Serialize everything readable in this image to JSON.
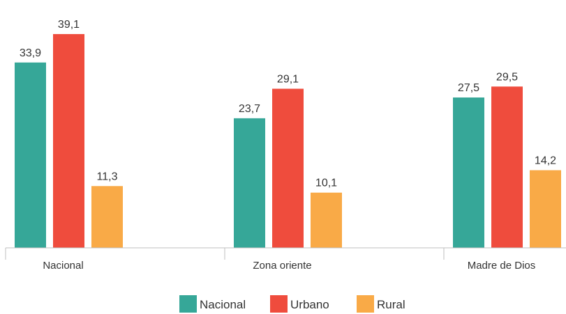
{
  "chart_data": {
    "type": "bar",
    "categories": [
      "Nacional",
      "Zona oriente",
      "Madre de Dios"
    ],
    "series": [
      {
        "name": "Nacional",
        "color": "#36A798",
        "values": [
          33.9,
          23.7,
          27.5
        ],
        "labels": [
          "33,9",
          "23,7",
          "27,5"
        ]
      },
      {
        "name": "Urbano",
        "color": "#EF4C3D",
        "values": [
          39.1,
          29.1,
          29.5
        ],
        "labels": [
          "39,1",
          "29,1",
          "29,5"
        ]
      },
      {
        "name": "Rural",
        "color": "#F9AA47",
        "values": [
          11.3,
          10.1,
          14.2
        ],
        "labels": [
          "11,3",
          "10,1",
          "14,2"
        ]
      }
    ],
    "ylim": [
      0,
      41
    ],
    "grid": false,
    "legend_position": "bottom"
  }
}
